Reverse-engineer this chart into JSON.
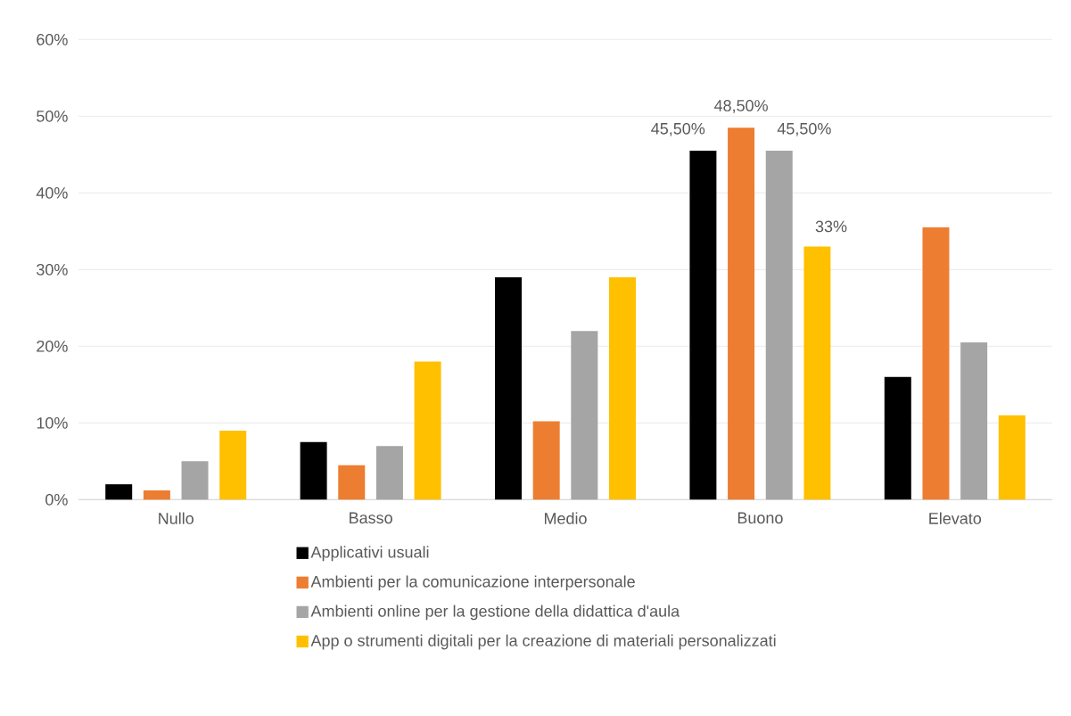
{
  "chart_data": {
    "type": "bar",
    "categories": [
      "Nullo",
      "Basso",
      "Medio",
      "Buono",
      "Elevato"
    ],
    "series": [
      {
        "name": "Applicativi usuali",
        "color": "#000000",
        "values": [
          2,
          7.5,
          29,
          45.5,
          16
        ],
        "value_labels": [
          null,
          null,
          null,
          "45,50%",
          null
        ]
      },
      {
        "name": "Ambienti per la comunicazione interpersonale",
        "color": "#ed7d31",
        "values": [
          1.2,
          4.5,
          10.2,
          48.5,
          35.5
        ],
        "value_labels": [
          null,
          null,
          null,
          "48,50%",
          null
        ]
      },
      {
        "name": "Ambienti online per la gestione della didattica d'aula",
        "color": "#a5a5a5",
        "values": [
          5,
          7,
          22,
          45.5,
          20.5
        ],
        "value_labels": [
          null,
          null,
          null,
          "45,50%",
          null
        ]
      },
      {
        "name": "App o strumenti digitali per la creazione di materiali personalizzati",
        "color": "#ffc000",
        "values": [
          9,
          18,
          29,
          33,
          11
        ],
        "value_labels": [
          null,
          null,
          null,
          "33%",
          null
        ]
      }
    ],
    "ylim": [
      0,
      60
    ],
    "yticks": [
      {
        "value": 0,
        "label": "0%"
      },
      {
        "value": 10,
        "label": "10%"
      },
      {
        "value": 20,
        "label": "20%"
      },
      {
        "value": 30,
        "label": "30%"
      },
      {
        "value": 40,
        "label": "40%"
      },
      {
        "value": 50,
        "label": "50%"
      },
      {
        "value": 60,
        "label": "60%"
      }
    ],
    "grid": "y",
    "legend": "bottom"
  }
}
